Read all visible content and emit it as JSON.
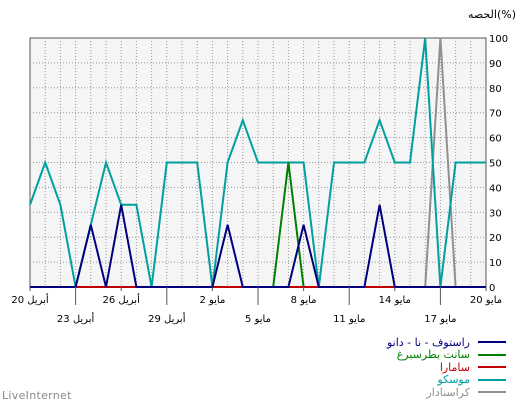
{
  "chart_data": {
    "type": "line",
    "ylabel": "الحصه(%)",
    "ylim": [
      0,
      100
    ],
    "yticks": [
      0,
      10,
      20,
      30,
      40,
      50,
      60,
      70,
      80,
      90,
      100
    ],
    "grid": true,
    "legend_position": "bottom-right",
    "x_tick_labels": [
      {
        "i": 0,
        "row": 1,
        "label": "20 مايو"
      },
      {
        "i": 3,
        "row": 2,
        "label": "17 مايو"
      },
      {
        "i": 6,
        "row": 1,
        "label": "14 مايو"
      },
      {
        "i": 9,
        "row": 2,
        "label": "11 مايو"
      },
      {
        "i": 12,
        "row": 1,
        "label": "8 مايو"
      },
      {
        "i": 15,
        "row": 2,
        "label": "5 مايو"
      },
      {
        "i": 18,
        "row": 1,
        "label": "2 مايو"
      },
      {
        "i": 21,
        "row": 2,
        "label": "29 أبريل"
      },
      {
        "i": 24,
        "row": 1,
        "label": "26 أبريل"
      },
      {
        "i": 27,
        "row": 2,
        "label": "23 أبريل"
      },
      {
        "i": 30,
        "row": 1,
        "label": "20 أبريل"
      }
    ],
    "series": [
      {
        "name": "راستوف - نا - دانو",
        "color": "#00007f",
        "values": [
          0,
          0,
          0,
          0,
          0,
          0,
          0,
          33,
          0,
          0,
          0,
          0,
          25,
          0,
          0,
          0,
          0,
          25,
          0,
          0,
          0,
          0,
          0,
          0,
          33,
          0,
          25,
          0,
          0,
          0,
          0
        ]
      },
      {
        "name": "سانت بطرسبرغ",
        "color": "#008000",
        "values": [
          0,
          0,
          0,
          0,
          0,
          0,
          0,
          0,
          0,
          0,
          0,
          0,
          0,
          50,
          0,
          0,
          0,
          0,
          0,
          0,
          0,
          0,
          0,
          0,
          0,
          0,
          0,
          0,
          0,
          0,
          0
        ]
      },
      {
        "name": "سامارا",
        "color": "#c00000",
        "values": [
          0,
          0,
          0,
          0,
          0,
          0,
          0,
          0,
          0,
          0,
          0,
          0,
          0,
          0,
          0,
          0,
          0,
          0,
          0,
          0,
          0,
          0,
          0,
          0,
          0,
          0,
          0,
          0,
          0,
          0,
          0
        ]
      },
      {
        "name": "موسكو",
        "color": "#00a0a0",
        "values": [
          50,
          50,
          50,
          0,
          100,
          50,
          50,
          67,
          50,
          50,
          50,
          0,
          50,
          50,
          50,
          50,
          67,
          50,
          0,
          50,
          50,
          50,
          0,
          33,
          33,
          50,
          25,
          0,
          33,
          50,
          33
        ]
      },
      {
        "name": "كراسنادار",
        "color": "#909090",
        "values": [
          0,
          0,
          0,
          100,
          0,
          0,
          0,
          0,
          0,
          0,
          0,
          0,
          0,
          0,
          0,
          0,
          0,
          0,
          0,
          0,
          0,
          0,
          0,
          0,
          0,
          0,
          0,
          0,
          0,
          0,
          0
        ]
      }
    ]
  },
  "footer": {
    "brand": "LiveInternet"
  }
}
